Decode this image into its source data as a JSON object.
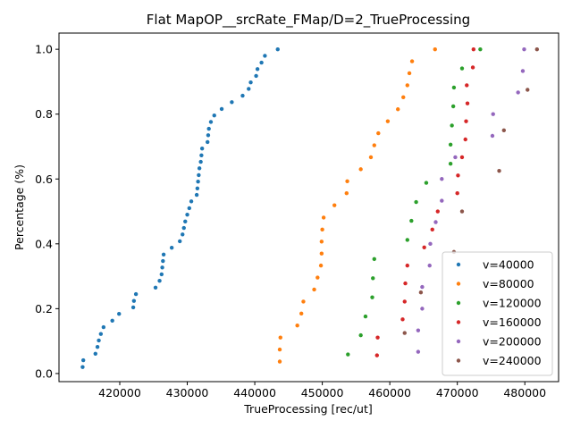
{
  "chart_data": {
    "type": "scatter",
    "title": "Flat MapOP__srcRate_FMap/D=2_TrueProcessing",
    "xlabel": "TrueProcessing [rec/ut]",
    "ylabel": "Percentage (%)",
    "xlim": [
      411000,
      485000
    ],
    "ylim": [
      -0.025,
      1.05
    ],
    "x_ticks": [
      420000,
      430000,
      440000,
      450000,
      460000,
      470000,
      480000
    ],
    "x_tick_labels": [
      "420000",
      "430000",
      "440000",
      "450000",
      "460000",
      "470000",
      "480000"
    ],
    "y_ticks": [
      0.0,
      0.2,
      0.4,
      0.6,
      0.8,
      1.0
    ],
    "y_tick_labels": [
      "0.0",
      "0.2",
      "0.4",
      "0.6",
      "0.8",
      "1.0"
    ],
    "grid": false,
    "legend_position": "bottom-right",
    "series": [
      {
        "name": "v=40000",
        "color": "#1f77b4",
        "points": [
          [
            414500,
            0.02
          ],
          [
            414600,
            0.041
          ],
          [
            416400,
            0.061
          ],
          [
            416700,
            0.082
          ],
          [
            416900,
            0.102
          ],
          [
            417200,
            0.122
          ],
          [
            417600,
            0.143
          ],
          [
            418900,
            0.163
          ],
          [
            419900,
            0.184
          ],
          [
            422000,
            0.204
          ],
          [
            422100,
            0.224
          ],
          [
            422400,
            0.245
          ],
          [
            425300,
            0.265
          ],
          [
            425900,
            0.286
          ],
          [
            426200,
            0.306
          ],
          [
            426300,
            0.327
          ],
          [
            426400,
            0.347
          ],
          [
            426500,
            0.367
          ],
          [
            427700,
            0.388
          ],
          [
            428900,
            0.408
          ],
          [
            429300,
            0.429
          ],
          [
            429500,
            0.449
          ],
          [
            429700,
            0.469
          ],
          [
            430000,
            0.49
          ],
          [
            430300,
            0.51
          ],
          [
            430600,
            0.531
          ],
          [
            431400,
            0.551
          ],
          [
            431500,
            0.571
          ],
          [
            431600,
            0.592
          ],
          [
            431700,
            0.612
          ],
          [
            431800,
            0.633
          ],
          [
            432000,
            0.653
          ],
          [
            432100,
            0.673
          ],
          [
            432200,
            0.694
          ],
          [
            433000,
            0.714
          ],
          [
            433100,
            0.735
          ],
          [
            433200,
            0.755
          ],
          [
            433500,
            0.776
          ],
          [
            434000,
            0.796
          ],
          [
            435100,
            0.816
          ],
          [
            436600,
            0.837
          ],
          [
            438200,
            0.857
          ],
          [
            439100,
            0.878
          ],
          [
            439400,
            0.898
          ],
          [
            440200,
            0.918
          ],
          [
            440400,
            0.939
          ],
          [
            441000,
            0.959
          ],
          [
            441500,
            0.98
          ],
          [
            443400,
            1.0
          ]
        ]
      },
      {
        "name": "v=80000",
        "color": "#ff7f0e",
        "points": [
          [
            443700,
            0.037
          ],
          [
            443700,
            0.074
          ],
          [
            443800,
            0.111
          ],
          [
            446300,
            0.148
          ],
          [
            446900,
            0.185
          ],
          [
            447200,
            0.222
          ],
          [
            448800,
            0.259
          ],
          [
            449300,
            0.296
          ],
          [
            449800,
            0.333
          ],
          [
            449900,
            0.37
          ],
          [
            449900,
            0.407
          ],
          [
            450000,
            0.444
          ],
          [
            450200,
            0.481
          ],
          [
            451800,
            0.519
          ],
          [
            453600,
            0.556
          ],
          [
            453700,
            0.593
          ],
          [
            455700,
            0.63
          ],
          [
            457200,
            0.667
          ],
          [
            457700,
            0.704
          ],
          [
            458300,
            0.741
          ],
          [
            459700,
            0.778
          ],
          [
            461200,
            0.815
          ],
          [
            462000,
            0.852
          ],
          [
            462600,
            0.889
          ],
          [
            462900,
            0.926
          ],
          [
            463300,
            0.963
          ],
          [
            466700,
            1.0
          ]
        ]
      },
      {
        "name": "v=120000",
        "color": "#2ca02c",
        "points": [
          [
            453800,
            0.059
          ],
          [
            455700,
            0.118
          ],
          [
            456400,
            0.176
          ],
          [
            457400,
            0.235
          ],
          [
            457500,
            0.294
          ],
          [
            457700,
            0.353
          ],
          [
            462600,
            0.412
          ],
          [
            463200,
            0.471
          ],
          [
            463900,
            0.529
          ],
          [
            465400,
            0.588
          ],
          [
            469000,
            0.647
          ],
          [
            469000,
            0.706
          ],
          [
            469200,
            0.765
          ],
          [
            469400,
            0.824
          ],
          [
            469500,
            0.882
          ],
          [
            470700,
            0.941
          ],
          [
            473400,
            1.0
          ]
        ]
      },
      {
        "name": "v=160000",
        "color": "#d62728",
        "points": [
          [
            458100,
            0.056
          ],
          [
            458200,
            0.111
          ],
          [
            461900,
            0.167
          ],
          [
            462200,
            0.222
          ],
          [
            462300,
            0.278
          ],
          [
            462600,
            0.333
          ],
          [
            465100,
            0.389
          ],
          [
            466300,
            0.444
          ],
          [
            467100,
            0.5
          ],
          [
            470000,
            0.556
          ],
          [
            470100,
            0.611
          ],
          [
            470700,
            0.667
          ],
          [
            471200,
            0.722
          ],
          [
            471300,
            0.778
          ],
          [
            471500,
            0.833
          ],
          [
            471400,
            0.889
          ],
          [
            472300,
            0.944
          ],
          [
            472400,
            1.0
          ]
        ]
      },
      {
        "name": "v=200000",
        "color": "#9467bd",
        "points": [
          [
            464200,
            0.067
          ],
          [
            464200,
            0.133
          ],
          [
            464800,
            0.2
          ],
          [
            464800,
            0.267
          ],
          [
            465900,
            0.333
          ],
          [
            466000,
            0.4
          ],
          [
            466800,
            0.467
          ],
          [
            467700,
            0.533
          ],
          [
            467700,
            0.6
          ],
          [
            469700,
            0.667
          ],
          [
            475200,
            0.733
          ],
          [
            475300,
            0.8
          ],
          [
            479000,
            0.867
          ],
          [
            479700,
            0.933
          ],
          [
            479900,
            1.0
          ]
        ]
      },
      {
        "name": "v=240000",
        "color": "#8c564b",
        "points": [
          [
            462200,
            0.125
          ],
          [
            464600,
            0.25
          ],
          [
            469500,
            0.375
          ],
          [
            470700,
            0.5
          ],
          [
            476200,
            0.625
          ],
          [
            476900,
            0.75
          ],
          [
            480400,
            0.875
          ],
          [
            481800,
            1.0
          ]
        ]
      }
    ]
  }
}
